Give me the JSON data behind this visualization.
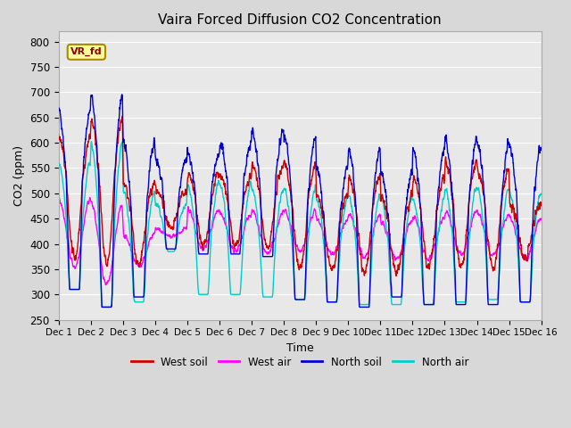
{
  "title": "Vaira Forced Diffusion CO2 Concentration",
  "xlabel": "Time",
  "ylabel": "CO2 (ppm)",
  "ylim": [
    250,
    820
  ],
  "yticks": [
    250,
    300,
    350,
    400,
    450,
    500,
    550,
    600,
    650,
    700,
    750,
    800
  ],
  "xtick_labels": [
    "Dec 1",
    "Dec 2",
    "Dec 3",
    "Dec 4",
    "Dec 5",
    "Dec 6",
    "Dec 7",
    "Dec 8",
    "Dec 9",
    "Dec 10",
    "Dec 11",
    "Dec 12",
    "Dec 13",
    "Dec 14",
    "Dec 15",
    "Dec 16"
  ],
  "colors": {
    "west_soil": "#cc0000",
    "west_air": "#ff00ff",
    "north_soil": "#0000cc",
    "north_air": "#00cccc"
  },
  "label_box_text": "VR_fd",
  "label_box_color": "#ffff99",
  "label_box_border": "#aa8800",
  "axes_bg": "#e8e8e8",
  "grid_color": "#ffffff",
  "linewidth": 1.0,
  "n_per_day": 144,
  "n_days": 15,
  "seed": 42
}
